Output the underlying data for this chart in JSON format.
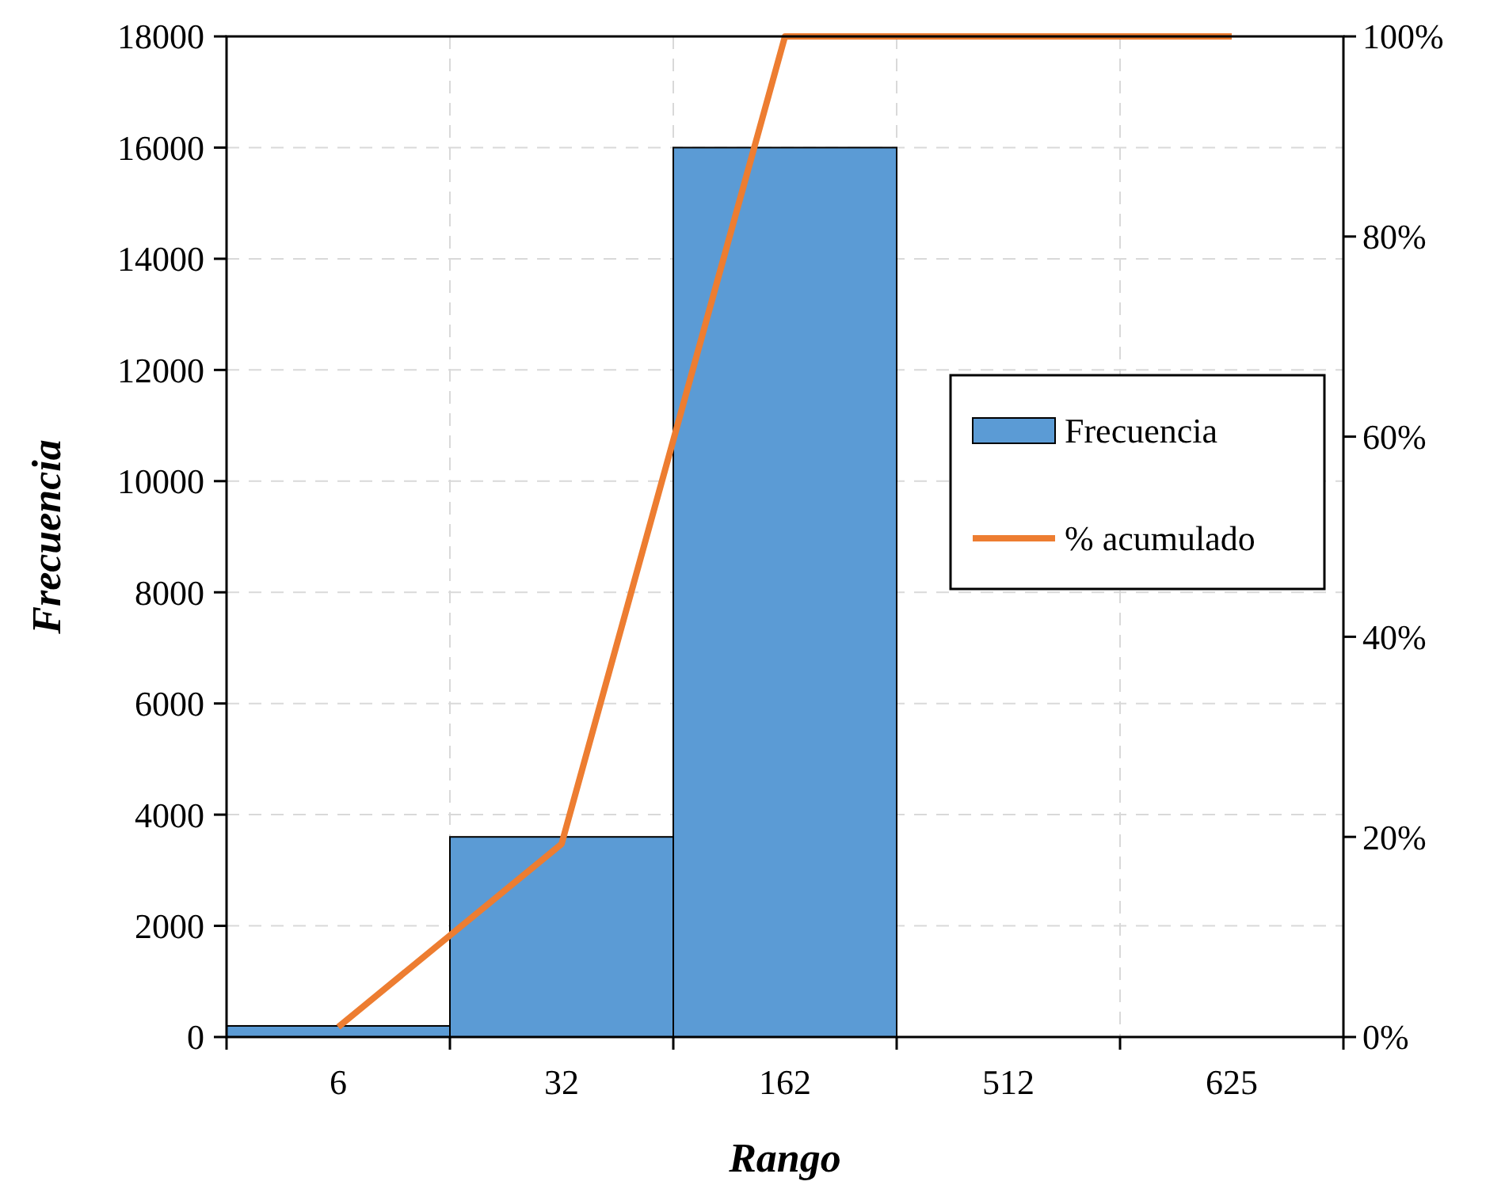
{
  "chart_data": {
    "type": "bar",
    "xlabel": "Rango",
    "ylabel": "Frecuencia",
    "categories": [
      "6",
      "32",
      "162",
      "512",
      "625"
    ],
    "series": [
      {
        "name": "Frecuencia",
        "color": "#5b9bd5",
        "values": [
          200,
          3600,
          16000,
          0,
          0
        ]
      },
      {
        "name": "% acumulado",
        "type": "line",
        "axis": "y2",
        "color": "#ed7d31",
        "values": [
          1,
          19.3,
          100,
          100,
          100
        ]
      }
    ],
    "ylim": [
      0,
      18000
    ],
    "yticks": [
      0,
      2000,
      4000,
      6000,
      8000,
      10000,
      12000,
      14000,
      16000,
      18000
    ],
    "y2lim": [
      0,
      100
    ],
    "y2ticks": [
      {
        "value": 0,
        "label": "0%"
      },
      {
        "value": 20,
        "label": "20%"
      },
      {
        "value": 40,
        "label": "40%"
      },
      {
        "value": 60,
        "label": "60%"
      },
      {
        "value": 80,
        "label": "80%"
      },
      {
        "value": 100,
        "label": "100%"
      }
    ],
    "grid": true,
    "legend": "right",
    "marker": "none"
  }
}
